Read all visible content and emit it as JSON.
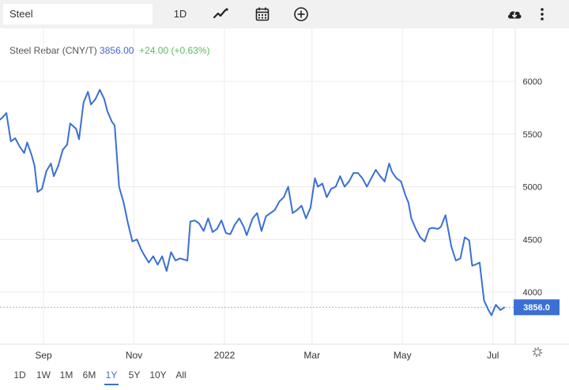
{
  "toolbar": {
    "search_value": "Steel",
    "interval_label": "1D",
    "icons": [
      "line-chart-icon",
      "calendar-icon",
      "plus-circle-icon",
      "cloud-download-icon",
      "more-vertical-icon"
    ]
  },
  "legend": {
    "name": "Steel Rebar (CNY/T)",
    "price": "3856.00",
    "change": "+24.00 (+0.63%)"
  },
  "ranges": [
    "1D",
    "1W",
    "1M",
    "6M",
    "1Y",
    "5Y",
    "10Y",
    "All"
  ],
  "active_range": "1Y",
  "colors": {
    "line": "#3b6fd4",
    "change_positive": "#5cb85c",
    "price_tag": "#3b6fd4"
  },
  "chart_data": {
    "type": "line",
    "x_axis_labels": [
      "Sep",
      "Nov",
      "2022",
      "Mar",
      "May",
      "Jul"
    ],
    "y_axis_labels": [
      "6000",
      "5500",
      "5000",
      "4500",
      "4000"
    ],
    "ylim": [
      3500,
      6000
    ],
    "current_value_label": "3856.0",
    "current_value": 3856,
    "series": [
      {
        "points": [
          [
            "2021-08-01",
            5620
          ],
          [
            "2021-08-04",
            5650
          ],
          [
            "2021-08-07",
            5700
          ],
          [
            "2021-08-10",
            5430
          ],
          [
            "2021-08-13",
            5460
          ],
          [
            "2021-08-16",
            5380
          ],
          [
            "2021-08-19",
            5320
          ],
          [
            "2021-08-21",
            5420
          ],
          [
            "2021-08-24",
            5300
          ],
          [
            "2021-08-26",
            5200
          ],
          [
            "2021-08-28",
            4950
          ],
          [
            "2021-08-31",
            4980
          ],
          [
            "2021-09-03",
            5150
          ],
          [
            "2021-09-06",
            5220
          ],
          [
            "2021-09-08",
            5100
          ],
          [
            "2021-09-11",
            5200
          ],
          [
            "2021-09-14",
            5350
          ],
          [
            "2021-09-17",
            5400
          ],
          [
            "2021-09-19",
            5600
          ],
          [
            "2021-09-23",
            5550
          ],
          [
            "2021-09-25",
            5450
          ],
          [
            "2021-09-28",
            5800
          ],
          [
            "2021-10-01",
            5900
          ],
          [
            "2021-10-03",
            5780
          ],
          [
            "2021-10-06",
            5830
          ],
          [
            "2021-10-09",
            5920
          ],
          [
            "2021-10-12",
            5830
          ],
          [
            "2021-10-14",
            5720
          ],
          [
            "2021-10-17",
            5620
          ],
          [
            "2021-10-19",
            5580
          ],
          [
            "2021-10-22",
            5000
          ],
          [
            "2021-10-25",
            4850
          ],
          [
            "2021-10-28",
            4650
          ],
          [
            "2021-10-31",
            4480
          ],
          [
            "2021-11-03",
            4500
          ],
          [
            "2021-11-06",
            4400
          ],
          [
            "2021-11-08",
            4350
          ],
          [
            "2021-11-11",
            4280
          ],
          [
            "2021-11-14",
            4340
          ],
          [
            "2021-11-17",
            4260
          ],
          [
            "2021-11-20",
            4340
          ],
          [
            "2021-11-23",
            4200
          ],
          [
            "2021-11-26",
            4380
          ],
          [
            "2021-11-29",
            4300
          ],
          [
            "2021-12-02",
            4320
          ],
          [
            "2021-12-07",
            4300
          ],
          [
            "2021-12-09",
            4670
          ],
          [
            "2021-12-12",
            4680
          ],
          [
            "2021-12-15",
            4650
          ],
          [
            "2021-12-18",
            4580
          ],
          [
            "2021-12-21",
            4700
          ],
          [
            "2021-12-24",
            4570
          ],
          [
            "2021-12-27",
            4600
          ],
          [
            "2021-12-30",
            4680
          ],
          [
            "2022-01-02",
            4560
          ],
          [
            "2022-01-05",
            4550
          ],
          [
            "2022-01-08",
            4640
          ],
          [
            "2022-01-11",
            4700
          ],
          [
            "2022-01-14",
            4620
          ],
          [
            "2022-01-16",
            4540
          ],
          [
            "2022-01-20",
            4700
          ],
          [
            "2022-01-23",
            4750
          ],
          [
            "2022-01-26",
            4580
          ],
          [
            "2022-01-29",
            4720
          ],
          [
            "2022-02-01",
            4750
          ],
          [
            "2022-02-04",
            4780
          ],
          [
            "2022-02-07",
            4860
          ],
          [
            "2022-02-10",
            4900
          ],
          [
            "2022-02-13",
            5000
          ],
          [
            "2022-02-16",
            4750
          ],
          [
            "2022-02-19",
            4780
          ],
          [
            "2022-02-22",
            4820
          ],
          [
            "2022-02-25",
            4700
          ],
          [
            "2022-02-28",
            4800
          ],
          [
            "2022-03-03",
            5080
          ],
          [
            "2022-03-05",
            5000
          ],
          [
            "2022-03-08",
            5030
          ],
          [
            "2022-03-11",
            4900
          ],
          [
            "2022-03-14",
            4980
          ],
          [
            "2022-03-17",
            5000
          ],
          [
            "2022-03-20",
            5100
          ],
          [
            "2022-03-23",
            5000
          ],
          [
            "2022-03-26",
            5050
          ],
          [
            "2022-03-29",
            5130
          ],
          [
            "2022-04-01",
            5130
          ],
          [
            "2022-04-04",
            5080
          ],
          [
            "2022-04-07",
            5000
          ],
          [
            "2022-04-10",
            5080
          ],
          [
            "2022-04-13",
            5160
          ],
          [
            "2022-04-16",
            5100
          ],
          [
            "2022-04-19",
            5050
          ],
          [
            "2022-04-22",
            5220
          ],
          [
            "2022-04-24",
            5140
          ],
          [
            "2022-04-27",
            5080
          ],
          [
            "2022-04-30",
            5050
          ],
          [
            "2022-05-03",
            4920
          ],
          [
            "2022-05-05",
            4850
          ],
          [
            "2022-05-07",
            4700
          ],
          [
            "2022-05-10",
            4600
          ],
          [
            "2022-05-13",
            4520
          ],
          [
            "2022-05-16",
            4480
          ],
          [
            "2022-05-19",
            4600
          ],
          [
            "2022-05-21",
            4610
          ],
          [
            "2022-05-25",
            4600
          ],
          [
            "2022-05-27",
            4620
          ],
          [
            "2022-05-30",
            4730
          ],
          [
            "2022-06-03",
            4430
          ],
          [
            "2022-06-06",
            4300
          ],
          [
            "2022-06-09",
            4320
          ],
          [
            "2022-06-12",
            4520
          ],
          [
            "2022-06-15",
            4490
          ],
          [
            "2022-06-17",
            4250
          ],
          [
            "2022-06-19",
            4260
          ],
          [
            "2022-06-22",
            4280
          ],
          [
            "2022-06-25",
            3920
          ],
          [
            "2022-06-28",
            3830
          ],
          [
            "2022-06-30",
            3780
          ],
          [
            "2022-07-03",
            3880
          ],
          [
            "2022-07-06",
            3830
          ],
          [
            "2022-07-09",
            3856
          ]
        ]
      }
    ]
  }
}
